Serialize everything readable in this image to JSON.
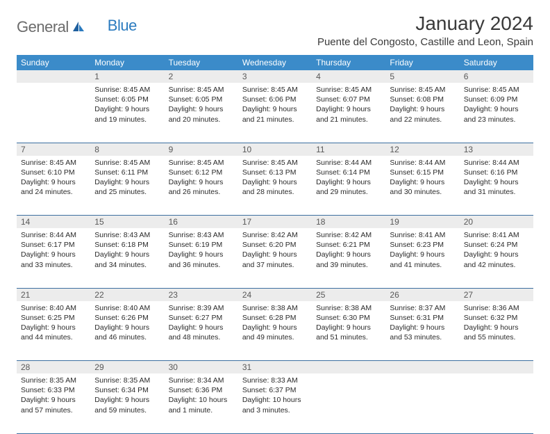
{
  "logo": {
    "word1": "General",
    "word2": "Blue"
  },
  "title": "January 2024",
  "location": "Puente del Congosto, Castille and Leon, Spain",
  "colors": {
    "header_bg": "#3b8bc9",
    "header_text": "#ffffff",
    "daynum_bg": "#ececec",
    "daynum_text": "#585858",
    "row_border": "#3b6fa0",
    "body_text": "#2a2a2a",
    "logo_gray": "#6b6b6b",
    "logo_blue": "#2b7bbf",
    "title_text": "#3a3a3a"
  },
  "typography": {
    "title_fontsize": 28,
    "location_fontsize": 15,
    "header_fontsize": 12,
    "daynum_fontsize": 12,
    "cell_fontsize": 10.5,
    "logo_fontsize": 22
  },
  "days": [
    "Sunday",
    "Monday",
    "Tuesday",
    "Wednesday",
    "Thursday",
    "Friday",
    "Saturday"
  ],
  "weeks": [
    [
      null,
      {
        "n": "1",
        "sunrise": "8:45 AM",
        "sunset": "6:05 PM",
        "daylight": "9 hours and 19 minutes."
      },
      {
        "n": "2",
        "sunrise": "8:45 AM",
        "sunset": "6:05 PM",
        "daylight": "9 hours and 20 minutes."
      },
      {
        "n": "3",
        "sunrise": "8:45 AM",
        "sunset": "6:06 PM",
        "daylight": "9 hours and 21 minutes."
      },
      {
        "n": "4",
        "sunrise": "8:45 AM",
        "sunset": "6:07 PM",
        "daylight": "9 hours and 21 minutes."
      },
      {
        "n": "5",
        "sunrise": "8:45 AM",
        "sunset": "6:08 PM",
        "daylight": "9 hours and 22 minutes."
      },
      {
        "n": "6",
        "sunrise": "8:45 AM",
        "sunset": "6:09 PM",
        "daylight": "9 hours and 23 minutes."
      }
    ],
    [
      {
        "n": "7",
        "sunrise": "8:45 AM",
        "sunset": "6:10 PM",
        "daylight": "9 hours and 24 minutes."
      },
      {
        "n": "8",
        "sunrise": "8:45 AM",
        "sunset": "6:11 PM",
        "daylight": "9 hours and 25 minutes."
      },
      {
        "n": "9",
        "sunrise": "8:45 AM",
        "sunset": "6:12 PM",
        "daylight": "9 hours and 26 minutes."
      },
      {
        "n": "10",
        "sunrise": "8:45 AM",
        "sunset": "6:13 PM",
        "daylight": "9 hours and 28 minutes."
      },
      {
        "n": "11",
        "sunrise": "8:44 AM",
        "sunset": "6:14 PM",
        "daylight": "9 hours and 29 minutes."
      },
      {
        "n": "12",
        "sunrise": "8:44 AM",
        "sunset": "6:15 PM",
        "daylight": "9 hours and 30 minutes."
      },
      {
        "n": "13",
        "sunrise": "8:44 AM",
        "sunset": "6:16 PM",
        "daylight": "9 hours and 31 minutes."
      }
    ],
    [
      {
        "n": "14",
        "sunrise": "8:44 AM",
        "sunset": "6:17 PM",
        "daylight": "9 hours and 33 minutes."
      },
      {
        "n": "15",
        "sunrise": "8:43 AM",
        "sunset": "6:18 PM",
        "daylight": "9 hours and 34 minutes."
      },
      {
        "n": "16",
        "sunrise": "8:43 AM",
        "sunset": "6:19 PM",
        "daylight": "9 hours and 36 minutes."
      },
      {
        "n": "17",
        "sunrise": "8:42 AM",
        "sunset": "6:20 PM",
        "daylight": "9 hours and 37 minutes."
      },
      {
        "n": "18",
        "sunrise": "8:42 AM",
        "sunset": "6:21 PM",
        "daylight": "9 hours and 39 minutes."
      },
      {
        "n": "19",
        "sunrise": "8:41 AM",
        "sunset": "6:23 PM",
        "daylight": "9 hours and 41 minutes."
      },
      {
        "n": "20",
        "sunrise": "8:41 AM",
        "sunset": "6:24 PM",
        "daylight": "9 hours and 42 minutes."
      }
    ],
    [
      {
        "n": "21",
        "sunrise": "8:40 AM",
        "sunset": "6:25 PM",
        "daylight": "9 hours and 44 minutes."
      },
      {
        "n": "22",
        "sunrise": "8:40 AM",
        "sunset": "6:26 PM",
        "daylight": "9 hours and 46 minutes."
      },
      {
        "n": "23",
        "sunrise": "8:39 AM",
        "sunset": "6:27 PM",
        "daylight": "9 hours and 48 minutes."
      },
      {
        "n": "24",
        "sunrise": "8:38 AM",
        "sunset": "6:28 PM",
        "daylight": "9 hours and 49 minutes."
      },
      {
        "n": "25",
        "sunrise": "8:38 AM",
        "sunset": "6:30 PM",
        "daylight": "9 hours and 51 minutes."
      },
      {
        "n": "26",
        "sunrise": "8:37 AM",
        "sunset": "6:31 PM",
        "daylight": "9 hours and 53 minutes."
      },
      {
        "n": "27",
        "sunrise": "8:36 AM",
        "sunset": "6:32 PM",
        "daylight": "9 hours and 55 minutes."
      }
    ],
    [
      {
        "n": "28",
        "sunrise": "8:35 AM",
        "sunset": "6:33 PM",
        "daylight": "9 hours and 57 minutes."
      },
      {
        "n": "29",
        "sunrise": "8:35 AM",
        "sunset": "6:34 PM",
        "daylight": "9 hours and 59 minutes."
      },
      {
        "n": "30",
        "sunrise": "8:34 AM",
        "sunset": "6:36 PM",
        "daylight": "10 hours and 1 minute."
      },
      {
        "n": "31",
        "sunrise": "8:33 AM",
        "sunset": "6:37 PM",
        "daylight": "10 hours and 3 minutes."
      },
      null,
      null,
      null
    ]
  ],
  "labels": {
    "sunrise": "Sunrise:",
    "sunset": "Sunset:",
    "daylight": "Daylight:"
  }
}
